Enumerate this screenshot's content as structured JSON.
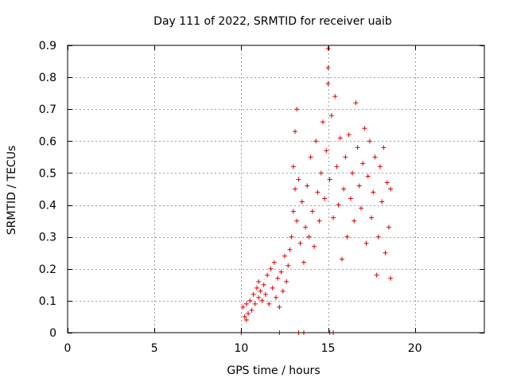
{
  "chart_data": {
    "type": "scatter",
    "title": "Day 111 of 2022, SRMTID for receiver uaib",
    "xlabel": "GPS time / hours",
    "ylabel": "SRMTID / TECUs",
    "xlim": [
      0,
      24
    ],
    "ylim": [
      0,
      0.9
    ],
    "xticks": [
      0,
      5,
      10,
      15,
      20
    ],
    "yticks": [
      0,
      0.1,
      0.2,
      0.3,
      0.4,
      0.5,
      0.6,
      0.7,
      0.8,
      0.9
    ],
    "x_tick_labels": [
      "0",
      "5",
      "10",
      "15",
      "20"
    ],
    "y_tick_labels": [
      "0",
      "0.1",
      "0.2",
      "0.3",
      "0.4",
      "0.5",
      "0.6",
      "0.7",
      "0.8",
      "0.9"
    ],
    "grid": true,
    "marker": "+",
    "color": "#e00000",
    "series": [
      {
        "name": "SRMTID",
        "points": [
          [
            10.0,
            0.0
          ],
          [
            12.2,
            0.0
          ],
          [
            13.3,
            0.0
          ],
          [
            13.6,
            0.0
          ],
          [
            15.1,
            0.0
          ],
          [
            15.3,
            0.0
          ],
          [
            10.1,
            0.08
          ],
          [
            10.2,
            0.05
          ],
          [
            10.3,
            0.04
          ],
          [
            10.3,
            0.09
          ],
          [
            10.4,
            0.06
          ],
          [
            10.5,
            0.1
          ],
          [
            10.6,
            0.07
          ],
          [
            10.7,
            0.12
          ],
          [
            10.8,
            0.09
          ],
          [
            10.9,
            0.14
          ],
          [
            11.0,
            0.11
          ],
          [
            11.0,
            0.16
          ],
          [
            11.1,
            0.13
          ],
          [
            11.2,
            0.1
          ],
          [
            11.3,
            0.15
          ],
          [
            11.4,
            0.12
          ],
          [
            11.5,
            0.18
          ],
          [
            11.6,
            0.09
          ],
          [
            11.7,
            0.2
          ],
          [
            11.8,
            0.14
          ],
          [
            11.9,
            0.22
          ],
          [
            12.0,
            0.11
          ],
          [
            12.1,
            0.17
          ],
          [
            12.2,
            0.08
          ],
          [
            12.3,
            0.19
          ],
          [
            12.4,
            0.13
          ],
          [
            12.5,
            0.24
          ],
          [
            12.6,
            0.16
          ],
          [
            12.7,
            0.21
          ],
          [
            12.8,
            0.26
          ],
          [
            12.9,
            0.3
          ],
          [
            13.0,
            0.38
          ],
          [
            13.0,
            0.52
          ],
          [
            13.1,
            0.45
          ],
          [
            13.1,
            0.63
          ],
          [
            13.2,
            0.7
          ],
          [
            13.2,
            0.35
          ],
          [
            13.3,
            0.48
          ],
          [
            13.4,
            0.28
          ],
          [
            13.5,
            0.41
          ],
          [
            13.6,
            0.22
          ],
          [
            13.7,
            0.33
          ],
          [
            13.8,
            0.46
          ],
          [
            13.9,
            0.3
          ],
          [
            14.0,
            0.55
          ],
          [
            14.1,
            0.38
          ],
          [
            14.2,
            0.27
          ],
          [
            14.3,
            0.6
          ],
          [
            14.4,
            0.44
          ],
          [
            14.5,
            0.35
          ],
          [
            14.6,
            0.5
          ],
          [
            14.7,
            0.66
          ],
          [
            14.8,
            0.42
          ],
          [
            14.9,
            0.57
          ],
          [
            15.0,
            0.89
          ],
          [
            15.0,
            0.83
          ],
          [
            15.0,
            0.78
          ],
          [
            15.1,
            0.48
          ],
          [
            15.2,
            0.68
          ],
          [
            15.3,
            0.36
          ],
          [
            15.4,
            0.74
          ],
          [
            15.5,
            0.52
          ],
          [
            15.6,
            0.4
          ],
          [
            15.7,
            0.61
          ],
          [
            15.8,
            0.23
          ],
          [
            15.9,
            0.45
          ],
          [
            16.0,
            0.55
          ],
          [
            16.1,
            0.3
          ],
          [
            16.2,
            0.62
          ],
          [
            16.3,
            0.42
          ],
          [
            16.4,
            0.5
          ],
          [
            16.5,
            0.35
          ],
          [
            16.6,
            0.72
          ],
          [
            16.7,
            0.58
          ],
          [
            16.8,
            0.46
          ],
          [
            16.9,
            0.39
          ],
          [
            17.0,
            0.53
          ],
          [
            17.1,
            0.64
          ],
          [
            17.2,
            0.28
          ],
          [
            17.3,
            0.49
          ],
          [
            17.4,
            0.6
          ],
          [
            17.5,
            0.36
          ],
          [
            17.6,
            0.44
          ],
          [
            17.7,
            0.55
          ],
          [
            17.8,
            0.18
          ],
          [
            17.9,
            0.3
          ],
          [
            18.0,
            0.52
          ],
          [
            18.1,
            0.41
          ],
          [
            18.2,
            0.58
          ],
          [
            18.3,
            0.25
          ],
          [
            18.4,
            0.47
          ],
          [
            18.5,
            0.33
          ],
          [
            18.6,
            0.17
          ],
          [
            18.6,
            0.45
          ]
        ]
      }
    ]
  }
}
